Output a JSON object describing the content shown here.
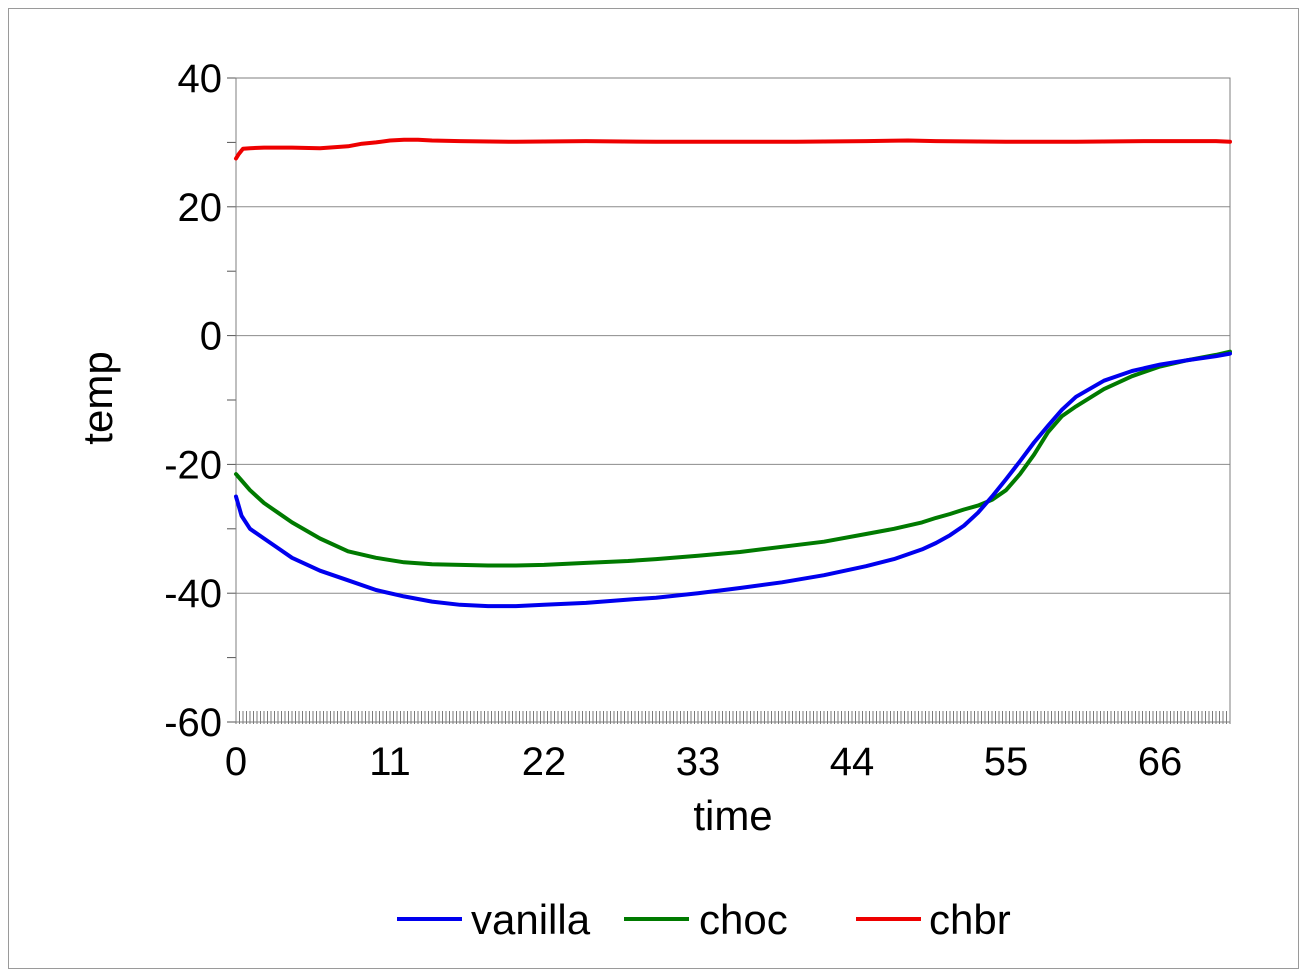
{
  "chart_data": {
    "type": "line",
    "title": "",
    "xlabel": "time",
    "ylabel": "temp",
    "xlim": [
      0,
      71
    ],
    "ylim": [
      -60,
      40
    ],
    "x_ticks": [
      "0",
      "11",
      "22",
      "33",
      "44",
      "55",
      "66"
    ],
    "y_ticks": [
      "40",
      "20",
      "0",
      "-20",
      "-40",
      "-60"
    ],
    "grid": "horizontal",
    "legend_position": "bottom",
    "series": [
      {
        "name": "vanilla",
        "color": "#0000ee",
        "x": [
          0,
          0.4,
          1,
          2,
          3,
          4,
          6,
          8,
          10,
          12,
          14,
          16,
          18,
          20,
          22,
          25,
          28,
          30,
          33,
          36,
          39,
          42,
          45,
          47,
          49,
          50,
          51,
          52,
          53,
          54,
          55,
          56,
          57,
          58,
          59,
          60,
          62,
          64,
          66,
          68,
          70,
          71
        ],
        "y": [
          -25,
          -28,
          -30,
          -31.5,
          -33,
          -34.5,
          -36.5,
          -38,
          -39.5,
          -40.5,
          -41.3,
          -41.8,
          -42,
          -42,
          -41.8,
          -41.5,
          -41,
          -40.7,
          -40,
          -39.2,
          -38.3,
          -37.2,
          -35.8,
          -34.7,
          -33.2,
          -32.2,
          -31,
          -29.5,
          -27.5,
          -25,
          -22.3,
          -19.5,
          -16.6,
          -14,
          -11.5,
          -9.5,
          -7,
          -5.5,
          -4.5,
          -3.8,
          -3.2,
          -2.8
        ]
      },
      {
        "name": "choc",
        "color": "#007a00",
        "x": [
          0,
          0.4,
          1,
          2,
          3,
          4,
          6,
          8,
          10,
          12,
          14,
          16,
          18,
          20,
          22,
          25,
          28,
          30,
          33,
          36,
          39,
          42,
          45,
          47,
          49,
          50,
          51,
          52,
          53,
          54,
          55,
          56,
          57,
          58,
          59,
          60,
          62,
          64,
          66,
          68,
          70,
          71
        ],
        "y": [
          -21.5,
          -22.5,
          -24,
          -26,
          -27.5,
          -29,
          -31.5,
          -33.5,
          -34.5,
          -35.2,
          -35.5,
          -35.6,
          -35.7,
          -35.7,
          -35.6,
          -35.3,
          -35,
          -34.7,
          -34.2,
          -33.6,
          -32.8,
          -32,
          -30.8,
          -30,
          -29,
          -28.3,
          -27.7,
          -27,
          -26.4,
          -25.5,
          -24,
          -21.5,
          -18.5,
          -15,
          -12.5,
          -11,
          -8.3,
          -6.3,
          -4.8,
          -3.8,
          -3,
          -2.5
        ]
      },
      {
        "name": "chbr",
        "color": "#ee0000",
        "x": [
          0,
          0.2,
          0.5,
          1,
          2,
          4,
          6,
          8,
          9,
          10,
          11,
          12,
          13,
          14,
          16,
          20,
          25,
          30,
          35,
          40,
          45,
          48,
          50,
          55,
          60,
          65,
          70,
          71
        ],
        "y": [
          27.5,
          28.2,
          29,
          29.1,
          29.2,
          29.2,
          29.1,
          29.4,
          29.8,
          30,
          30.3,
          30.4,
          30.4,
          30.3,
          30.2,
          30.1,
          30.2,
          30.1,
          30.1,
          30.1,
          30.2,
          30.3,
          30.2,
          30.1,
          30.1,
          30.2,
          30.2,
          30.1
        ]
      }
    ]
  }
}
